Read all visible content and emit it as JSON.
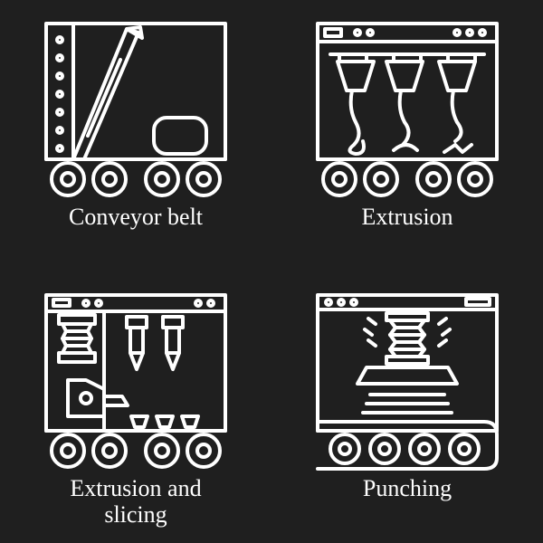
{
  "background_color": "#1f1f1f",
  "stroke_color": "#ffffff",
  "stroke_width": 4,
  "label_color": "#ffffff",
  "label_fontsize": 26,
  "font_family": "Georgia, serif",
  "icons": [
    {
      "key": "conveyor",
      "label": "Conveyor belt"
    },
    {
      "key": "extrusion",
      "label": "Extrusion"
    },
    {
      "key": "extrusion_slicing",
      "label": "Extrusion and\nslicing"
    },
    {
      "key": "punching",
      "label": "Punching"
    }
  ]
}
